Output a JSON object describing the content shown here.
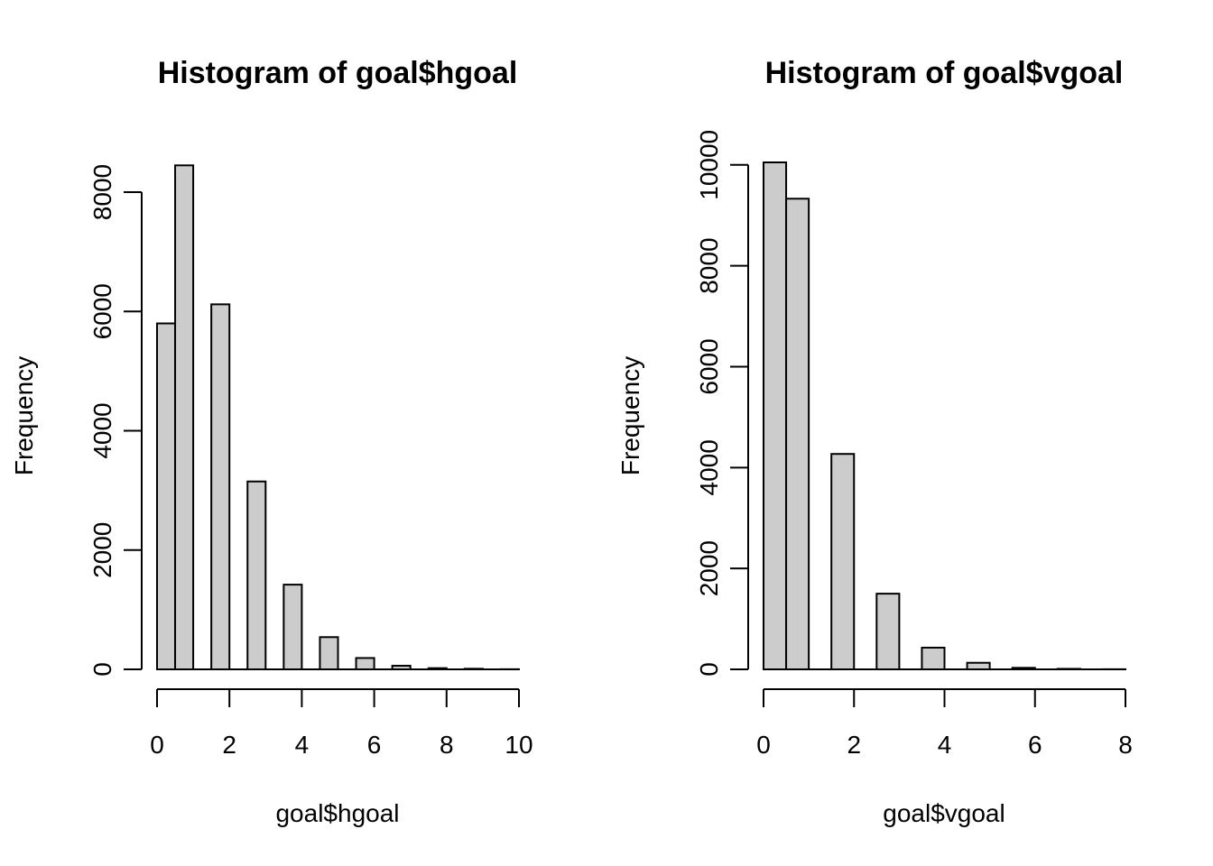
{
  "chart_data": [
    {
      "type": "bar",
      "title": "Histogram of goal$hgoal",
      "xlabel": "goal$hgoal",
      "ylabel": "Frequency",
      "xlim": [
        0,
        10
      ],
      "ylim": [
        0,
        8500
      ],
      "x_ticks": [
        "0",
        "2",
        "4",
        "6",
        "8",
        "10"
      ],
      "y_ticks": [
        "0",
        "2000",
        "4000",
        "6000",
        "8000"
      ],
      "bins": [
        {
          "start": 0.0,
          "end": 0.5,
          "value": 5800
        },
        {
          "start": 0.5,
          "end": 1.0,
          "value": 8450
        },
        {
          "start": 1.0,
          "end": 1.5,
          "value": 0
        },
        {
          "start": 1.5,
          "end": 2.0,
          "value": 6120
        },
        {
          "start": 2.0,
          "end": 2.5,
          "value": 0
        },
        {
          "start": 2.5,
          "end": 3.0,
          "value": 3150
        },
        {
          "start": 3.0,
          "end": 3.5,
          "value": 0
        },
        {
          "start": 3.5,
          "end": 4.0,
          "value": 1420
        },
        {
          "start": 4.0,
          "end": 4.5,
          "value": 0
        },
        {
          "start": 4.5,
          "end": 5.0,
          "value": 540
        },
        {
          "start": 5.0,
          "end": 5.5,
          "value": 0
        },
        {
          "start": 5.5,
          "end": 6.0,
          "value": 190
        },
        {
          "start": 6.0,
          "end": 6.5,
          "value": 0
        },
        {
          "start": 6.5,
          "end": 7.0,
          "value": 60
        },
        {
          "start": 7.0,
          "end": 7.5,
          "value": 0
        },
        {
          "start": 7.5,
          "end": 8.0,
          "value": 20
        },
        {
          "start": 8.0,
          "end": 8.5,
          "value": 0
        },
        {
          "start": 8.5,
          "end": 9.0,
          "value": 10
        },
        {
          "start": 9.0,
          "end": 9.5,
          "value": 0
        },
        {
          "start": 9.5,
          "end": 10.0,
          "value": 2
        }
      ]
    },
    {
      "type": "bar",
      "title": "Histogram of goal$vgoal",
      "xlabel": "goal$vgoal",
      "ylabel": "Frequency",
      "xlim": [
        0,
        8
      ],
      "ylim": [
        0,
        10050
      ],
      "x_ticks": [
        "0",
        "2",
        "4",
        "6",
        "8"
      ],
      "y_ticks": [
        "0",
        "2000",
        "4000",
        "6000",
        "8000",
        "10000"
      ],
      "bins": [
        {
          "start": 0.0,
          "end": 0.5,
          "value": 10050
        },
        {
          "start": 0.5,
          "end": 1.0,
          "value": 9330
        },
        {
          "start": 1.0,
          "end": 1.5,
          "value": 0
        },
        {
          "start": 1.5,
          "end": 2.0,
          "value": 4270
        },
        {
          "start": 2.0,
          "end": 2.5,
          "value": 0
        },
        {
          "start": 2.5,
          "end": 3.0,
          "value": 1500
        },
        {
          "start": 3.0,
          "end": 3.5,
          "value": 0
        },
        {
          "start": 3.5,
          "end": 4.0,
          "value": 430
        },
        {
          "start": 4.0,
          "end": 4.5,
          "value": 0
        },
        {
          "start": 4.5,
          "end": 5.0,
          "value": 130
        },
        {
          "start": 5.0,
          "end": 5.5,
          "value": 0
        },
        {
          "start": 5.5,
          "end": 6.0,
          "value": 30
        },
        {
          "start": 6.0,
          "end": 6.5,
          "value": 0
        },
        {
          "start": 6.5,
          "end": 7.0,
          "value": 10
        },
        {
          "start": 7.0,
          "end": 7.5,
          "value": 0
        },
        {
          "start": 7.5,
          "end": 8.0,
          "value": 2
        }
      ]
    }
  ],
  "colors": {
    "bar_fill": "#cccccc",
    "bar_stroke": "#000000",
    "text": "#000000"
  }
}
